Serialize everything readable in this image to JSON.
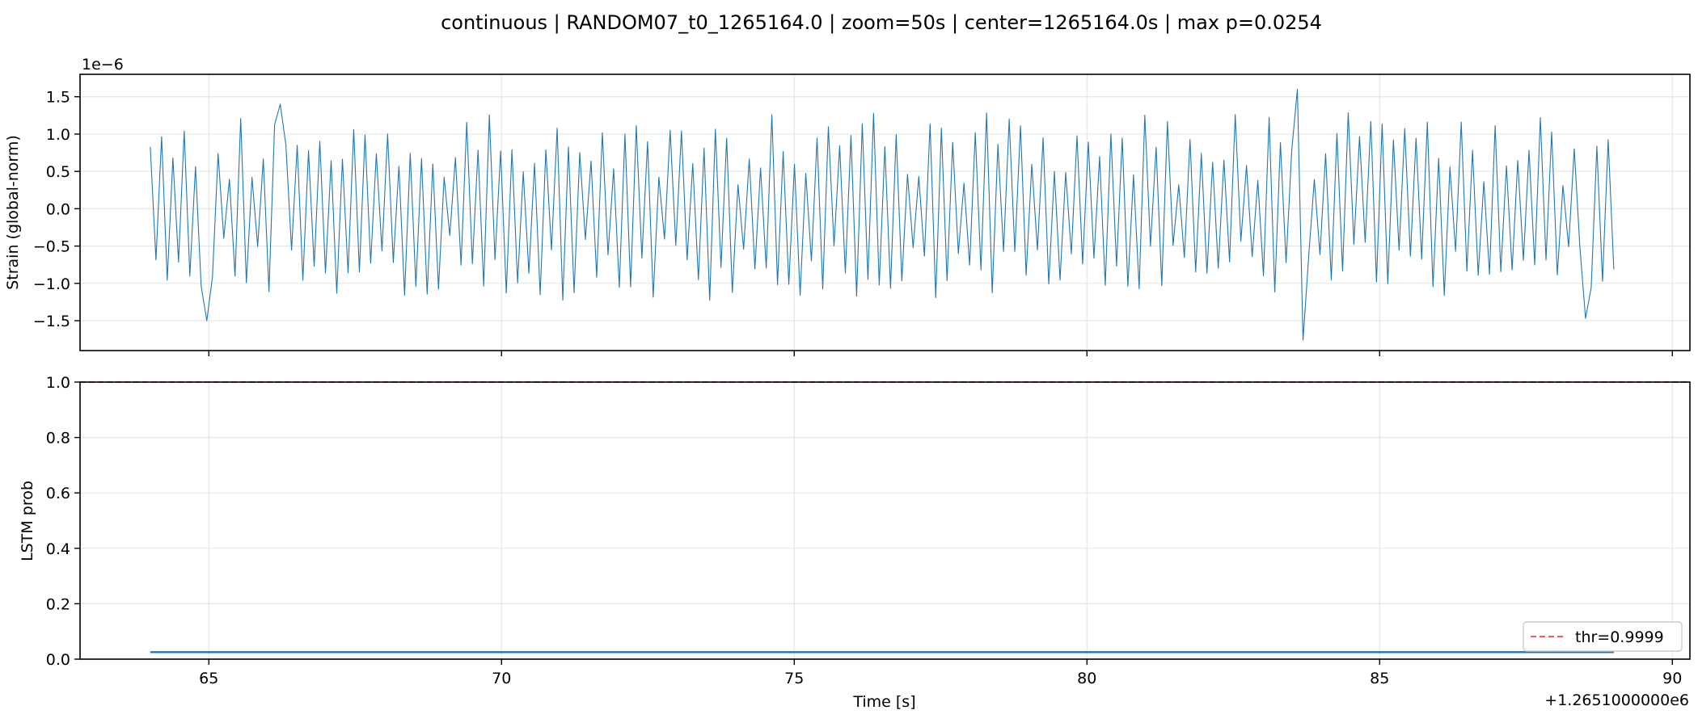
{
  "figure": {
    "title": "continuous | RANDOM07_t0_1265164.0 | zoom=50s | center=1265164.0s | max p=0.0254"
  },
  "chart_data": [
    {
      "type": "line",
      "panel": "top",
      "ylabel": "Strain (global-norm)",
      "offset_label": "1e−6",
      "xlim": [
        62.8,
        90.3
      ],
      "ylim": [
        -1.9,
        1.8
      ],
      "yticks": [
        -1.5,
        -1.0,
        -0.5,
        0.0,
        0.5,
        1.0,
        1.5
      ],
      "ytick_labels": [
        "−1.5",
        "−1.0",
        "−0.5",
        "0.0",
        "0.5",
        "1.0",
        "1.5"
      ],
      "xticks": [
        65,
        70,
        75,
        80,
        85,
        90
      ],
      "grid": true,
      "series": [
        {
          "color": "#1f77b4",
          "x_start": 64.0,
          "x_end": 89.0,
          "samples": 260,
          "y_max": 1.6,
          "y_min": -1.76,
          "annotated_extremes": [
            {
              "x": 65.0,
              "y": -1.5
            },
            {
              "x": 66.2,
              "y": 1.4
            },
            {
              "x": 83.6,
              "y": 1.6
            },
            {
              "x": 83.7,
              "y": -1.76
            },
            {
              "x": 88.5,
              "y": -1.47
            }
          ]
        }
      ]
    },
    {
      "type": "line",
      "panel": "bottom",
      "ylabel": "LSTM prob",
      "xlabel": "Time [s]",
      "x_offset_label": "+1.2651000000e6",
      "xlim": [
        62.8,
        90.3
      ],
      "ylim": [
        0.0,
        1.0
      ],
      "yticks": [
        0.0,
        0.2,
        0.4,
        0.6,
        0.8,
        1.0
      ],
      "ytick_labels": [
        "0.0",
        "0.2",
        "0.4",
        "0.6",
        "0.8",
        "1.0"
      ],
      "xticks": [
        65,
        70,
        75,
        80,
        85,
        90
      ],
      "xtick_labels": [
        "65",
        "70",
        "75",
        "80",
        "85",
        "90"
      ],
      "grid": true,
      "series": [
        {
          "color": "#1f77b4",
          "x": [
            64.0,
            89.0
          ],
          "y": [
            0.0254,
            0.0254
          ]
        }
      ],
      "threshold": {
        "value": 0.9999,
        "label": "thr=0.9999",
        "color": "#ff5555",
        "style": "dashed"
      },
      "legend": {
        "placement": "lower-right"
      }
    }
  ]
}
